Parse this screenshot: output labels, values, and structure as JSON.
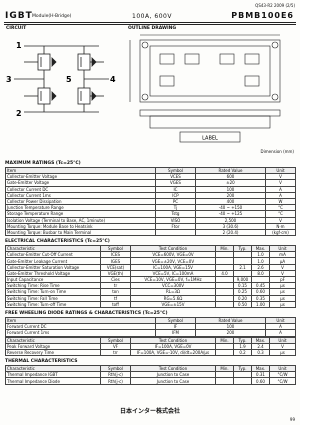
{
  "header": {
    "code": "QS43-R2 2009 (2/5)",
    "type": "IGBT",
    "subtype": "Module(H-Bridge)",
    "rating": "100A, 600V",
    "part": "PBMB100E6"
  },
  "circuit": {
    "label": "CIRCUIT",
    "terminals": [
      "1",
      "2",
      "3",
      "4",
      "5"
    ]
  },
  "outline": {
    "label": "OUTLINE DRAWING",
    "marking": "LABEL",
    "note": "Dimension (mm)"
  },
  "sections": [
    {
      "title": "MAXIMUM RATINGS (Tc=25°C)",
      "tables": [
        {
          "header": [
            "Item",
            "Symbol",
            "Rated Value",
            "Unit"
          ],
          "rows": [
            [
              "Collector-Emitter Voltage",
              "VCES",
              "600",
              "V"
            ],
            [
              "Gate-Emitter Voltage",
              "VGES",
              "±20",
              "V"
            ],
            [
              "Collector Current DC",
              "IC",
              "100",
              "A"
            ],
            [
              "Collector Current 1ms",
              "ICP",
              "200",
              "A"
            ],
            [
              "Collector Power Dissipation",
              "PC",
              "400",
              "W"
            ],
            [
              "Junction Temperature Range",
              "Tj",
              "-40 ~ +150",
              "°C"
            ],
            [
              "Storage Temperature Range",
              "Tstg",
              "-40 ~ +125",
              "°C"
            ],
            [
              "Isolation Voltage (Terminal to Base, AC, 1minute)",
              "VISO",
              "2,500",
              "V"
            ],
            [
              "Mounting Torque: Module Base to Heatsink",
              "Ftor",
              "3 (30.6)",
              "N·m"
            ],
            [
              "Mounting Torque: Busbar to Main Terminal",
              null,
              "2 (20.4)",
              "(kgf·cm)"
            ]
          ]
        }
      ]
    },
    {
      "title": "ELECTRICAL CHARACTERISTICS (Tc=25°C)",
      "tables": [
        {
          "header": [
            "Characteristic",
            "Symbol",
            "Test Condition",
            "Min.",
            "Typ.",
            "Max.",
            "Unit"
          ],
          "rows": [
            [
              "Collector-Emitter Cut-Off Current",
              "ICES",
              "VCE=600V, VGE=0V",
              null,
              null,
              "1.0",
              "mA"
            ],
            [
              "Gate-Emitter Leakage Current",
              "IGES",
              "VGE=±20V, VCE=0V",
              null,
              null,
              "1.0",
              "μA"
            ],
            [
              "Collector-Emitter Saturation Voltage",
              "VCE(sat)",
              "IC=100A, VGE=15V",
              null,
              "2.1",
              "2.6",
              "V"
            ],
            [
              "Gate-Emitter Threshold Voltage",
              "VGE(th)",
              "VCE=5V, IC=100mA",
              "4.0",
              null,
              "8.0",
              "V"
            ],
            [
              "Input Capacitance",
              "Cies",
              "VCE=10V, VGE=0V, f=1MHz",
              null,
              "9,000",
              null,
              "pF"
            ],
            [
              "Switching Time: Rise Time",
              "tr",
              "VCC=300V",
              null,
              "0.15",
              "0.45",
              "μs"
            ],
            [
              "Switching Time: Turn-on Time",
              "ton",
              "RL=3Ω",
              null,
              "0.25",
              "0.60",
              "μs"
            ],
            [
              "Switching Time: Fall Time",
              "tf",
              "RG=5.6Ω",
              null,
              "0.20",
              "0.35",
              "μs"
            ],
            [
              "Switching Time: Turn-off Time",
              "toff",
              "VGE=±15V",
              null,
              "0.50",
              "1.00",
              "μs"
            ]
          ]
        }
      ]
    },
    {
      "title": "FREE WHEELING DIODE RATINGS & CHARACTERISTICS (Tc=25°C)",
      "tables": [
        {
          "header": [
            "Item",
            "Symbol",
            "Rated Value",
            "Unit"
          ],
          "rows": [
            [
              "Forward Current DC",
              "IF",
              "100",
              "A"
            ],
            [
              "Forward Current 1ms",
              "IFM",
              "200",
              "A"
            ]
          ]
        },
        {
          "header": [
            "Characteristic",
            "Symbol",
            "Test Condition",
            "Min.",
            "Typ.",
            "Max.",
            "Unit"
          ],
          "rows": [
            [
              "Peak Forward Voltage",
              "VF",
              "IF=100A, VGE=0V",
              null,
              "1.9",
              "2.4",
              "V"
            ],
            [
              "Reverse Recovery Time",
              "trr",
              "IF=100A, VGE=-10V, di/dt=200A/μs",
              null,
              "0.2",
              "0.3",
              "μs"
            ]
          ]
        }
      ]
    },
    {
      "title": "THERMAL CHARACTERISTICS",
      "tables": [
        {
          "header": [
            "Characteristic",
            "Symbol",
            "Test Condition",
            "Min.",
            "Typ.",
            "Max.",
            "Unit"
          ],
          "rows": [
            [
              "Thermal Impedance IGBT",
              "Rth(j-c)",
              "Junction to Case",
              null,
              null,
              "0.31",
              "°C/W"
            ],
            [
              "Thermal Impedance Diode",
              "Rth(j-c)",
              "Junction to Case",
              null,
              null,
              "0.60",
              "°C/W"
            ]
          ]
        }
      ]
    }
  ],
  "footer": {
    "company": "日本インター株式会社",
    "page": "99"
  }
}
